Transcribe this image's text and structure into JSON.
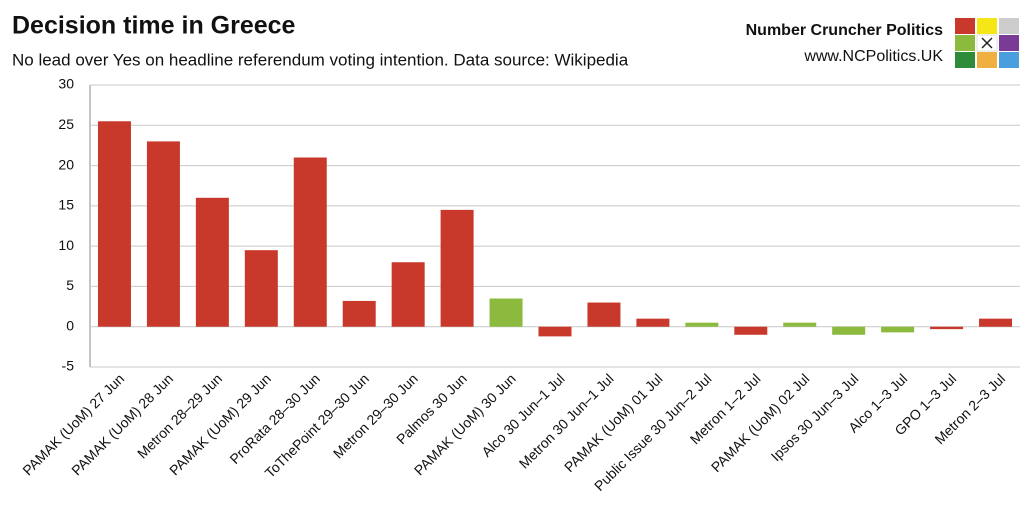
{
  "chart_data": {
    "type": "bar",
    "title": "Decision time in Greece",
    "subtitle": "No lead over Yes on headline referendum voting intention. Data source: Wikipedia",
    "categories": [
      "PAMAK (UoM) 27 Jun",
      "PAMAK (UoM) 28 Jun",
      "Metron 28–29 Jun",
      "PAMAK (UoM) 29 Jun",
      "ProRata 28–30 Jun",
      "ToThePoint 29–30 Jun",
      "Metron 29–30 Jun",
      "Palmos 30 Jun",
      "PAMAK (UoM) 30 Jun",
      "Alco 30 Jun–1 Jul",
      "Metron 30 Jun–1 Jul",
      "PAMAK (UoM) 01 Jul",
      "Public Issue 30 Jun–2 Jul",
      "Metron 1–2 Jul",
      "PAMAK (UoM) 02 Jul",
      "Ipsos 30 Jun–3 Jul",
      "Alco 1–3 Jul",
      "GPO 1–3 Jul",
      "Metron 2–3 Jul"
    ],
    "values": [
      25.5,
      23,
      16,
      9.5,
      21,
      3.2,
      8,
      14.5,
      3.5,
      -1.2,
      3,
      1,
      0.5,
      -1,
      0.5,
      -1,
      -0.7,
      -0.3,
      1
    ],
    "colors": [
      "#c8392b",
      "#c8392b",
      "#c8392b",
      "#c8392b",
      "#c8392b",
      "#c8392b",
      "#c8392b",
      "#c8392b",
      "#8cba3e",
      "#c8392b",
      "#c8392b",
      "#c8392b",
      "#8cba3e",
      "#c8392b",
      "#8cba3e",
      "#8cba3e",
      "#8cba3e",
      "#c8392b",
      "#c8392b"
    ],
    "ylim": [
      -5,
      30
    ],
    "yticks": [
      -5,
      0,
      5,
      10,
      15,
      20,
      25,
      30
    ],
    "grid": true
  },
  "brand": {
    "name": "Number Cruncher Politics",
    "url": "www.NCPolitics.UK"
  }
}
